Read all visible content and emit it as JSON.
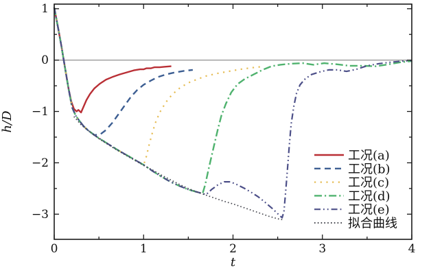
{
  "chart_data": {
    "type": "line",
    "title": "",
    "xlabel": "t",
    "ylabel": "h/D",
    "xlim": [
      0,
      4
    ],
    "ylim": [
      -3.49,
      1.09
    ],
    "grid": false,
    "zero_line": 0,
    "legend_position": "lower right",
    "xticks": {
      "major": [
        {
          "v": 0,
          "label": "0"
        },
        {
          "v": 1,
          "label": "1"
        },
        {
          "v": 2,
          "label": "2"
        },
        {
          "v": 3,
          "label": "3"
        },
        {
          "v": 4,
          "label": "4"
        }
      ],
      "minor": [
        0.5,
        1.5,
        2.5,
        3.5
      ]
    },
    "yticks": {
      "major": [
        {
          "v": 1,
          "label": "1"
        },
        {
          "v": 0,
          "label": "0"
        },
        {
          "v": -1,
          "label": "−1"
        },
        {
          "v": -2,
          "label": "−2"
        },
        {
          "v": -3,
          "label": "−3"
        }
      ],
      "minor": [
        0.5,
        -0.5,
        -1.5,
        -2.5
      ]
    },
    "colors": {
      "frame": "#1a1a1a",
      "zero_line": "#909090",
      "text": "#111111"
    },
    "series": [
      {
        "id": "a",
        "label": "工况(a)",
        "color": "#b92f35",
        "dash": "",
        "width": 2.4,
        "points": [
          [
            0,
            1.02
          ],
          [
            0.04,
            0.66
          ],
          [
            0.08,
            0.28
          ],
          [
            0.12,
            -0.14
          ],
          [
            0.16,
            -0.55
          ],
          [
            0.19,
            -0.8
          ],
          [
            0.22,
            -0.95
          ],
          [
            0.25,
            -1.0
          ],
          [
            0.27,
            -0.97
          ],
          [
            0.3,
            -1.02
          ],
          [
            0.33,
            -0.9
          ],
          [
            0.36,
            -0.78
          ],
          [
            0.4,
            -0.66
          ],
          [
            0.45,
            -0.55
          ],
          [
            0.51,
            -0.46
          ],
          [
            0.58,
            -0.38
          ],
          [
            0.65,
            -0.33
          ],
          [
            0.73,
            -0.28
          ],
          [
            0.81,
            -0.24
          ],
          [
            0.89,
            -0.2
          ],
          [
            0.96,
            -0.18
          ],
          [
            1.0,
            -0.18
          ],
          [
            1.03,
            -0.16
          ],
          [
            1.08,
            -0.16
          ],
          [
            1.12,
            -0.14
          ],
          [
            1.18,
            -0.14
          ],
          [
            1.23,
            -0.13
          ],
          [
            1.31,
            -0.12
          ]
        ]
      },
      {
        "id": "b",
        "label": "工况(b)",
        "color": "#3c5e92",
        "dash": "9 6",
        "width": 2.4,
        "points": [
          [
            0,
            1.02
          ],
          [
            0.04,
            0.66
          ],
          [
            0.08,
            0.28
          ],
          [
            0.12,
            -0.14
          ],
          [
            0.16,
            -0.55
          ],
          [
            0.2,
            -0.92
          ],
          [
            0.24,
            -1.08
          ],
          [
            0.28,
            -1.18
          ],
          [
            0.33,
            -1.29
          ],
          [
            0.38,
            -1.37
          ],
          [
            0.45,
            -1.46
          ],
          [
            0.52,
            -1.44
          ],
          [
            0.58,
            -1.36
          ],
          [
            0.65,
            -1.22
          ],
          [
            0.72,
            -1.05
          ],
          [
            0.79,
            -0.88
          ],
          [
            0.86,
            -0.71
          ],
          [
            0.93,
            -0.58
          ],
          [
            1.0,
            -0.48
          ],
          [
            1.08,
            -0.4
          ],
          [
            1.16,
            -0.33
          ],
          [
            1.25,
            -0.28
          ],
          [
            1.35,
            -0.24
          ],
          [
            1.45,
            -0.21
          ],
          [
            1.55,
            -0.19
          ]
        ]
      },
      {
        "id": "c",
        "label": "工况(c)",
        "color": "#e6bd56",
        "dash": "2.2 6.5",
        "width": 2.2,
        "points": [
          [
            0,
            1.02
          ],
          [
            0.04,
            0.66
          ],
          [
            0.08,
            0.28
          ],
          [
            0.12,
            -0.14
          ],
          [
            0.16,
            -0.55
          ],
          [
            0.2,
            -0.92
          ],
          [
            0.24,
            -1.08
          ],
          [
            0.28,
            -1.18
          ],
          [
            0.33,
            -1.29
          ],
          [
            0.38,
            -1.37
          ],
          [
            0.45,
            -1.46
          ],
          [
            0.5,
            -1.52
          ],
          [
            0.6,
            -1.63
          ],
          [
            0.7,
            -1.74
          ],
          [
            0.8,
            -1.84
          ],
          [
            0.9,
            -1.94
          ],
          [
            1.0,
            -2.04
          ],
          [
            1.03,
            -1.88
          ],
          [
            1.06,
            -1.66
          ],
          [
            1.1,
            -1.4
          ],
          [
            1.14,
            -1.18
          ],
          [
            1.19,
            -0.99
          ],
          [
            1.25,
            -0.82
          ],
          [
            1.32,
            -0.67
          ],
          [
            1.4,
            -0.55
          ],
          [
            1.49,
            -0.45
          ],
          [
            1.59,
            -0.38
          ],
          [
            1.7,
            -0.31
          ],
          [
            1.82,
            -0.26
          ],
          [
            1.95,
            -0.22
          ],
          [
            2.08,
            -0.18
          ],
          [
            2.2,
            -0.15
          ],
          [
            2.31,
            -0.13
          ]
        ]
      },
      {
        "id": "d",
        "label": "工况(d)",
        "color": "#4fb26e",
        "dash": "11 4 2.2 4",
        "width": 2.4,
        "points": [
          [
            0,
            1.02
          ],
          [
            0.04,
            0.66
          ],
          [
            0.08,
            0.28
          ],
          [
            0.12,
            -0.14
          ],
          [
            0.16,
            -0.55
          ],
          [
            0.2,
            -0.92
          ],
          [
            0.24,
            -1.08
          ],
          [
            0.28,
            -1.18
          ],
          [
            0.33,
            -1.29
          ],
          [
            0.38,
            -1.37
          ],
          [
            0.45,
            -1.46
          ],
          [
            0.5,
            -1.52
          ],
          [
            0.6,
            -1.63
          ],
          [
            0.7,
            -1.74
          ],
          [
            0.8,
            -1.84
          ],
          [
            0.9,
            -1.94
          ],
          [
            1.0,
            -2.04
          ],
          [
            1.1,
            -2.16
          ],
          [
            1.2,
            -2.27
          ],
          [
            1.3,
            -2.37
          ],
          [
            1.4,
            -2.45
          ],
          [
            1.5,
            -2.52
          ],
          [
            1.6,
            -2.57
          ],
          [
            1.66,
            -2.6
          ],
          [
            1.69,
            -2.42
          ],
          [
            1.72,
            -2.18
          ],
          [
            1.75,
            -1.95
          ],
          [
            1.79,
            -1.65
          ],
          [
            1.83,
            -1.35
          ],
          [
            1.87,
            -1.08
          ],
          [
            1.92,
            -0.85
          ],
          [
            1.98,
            -0.63
          ],
          [
            2.05,
            -0.47
          ],
          [
            2.13,
            -0.37
          ],
          [
            2.23,
            -0.28
          ],
          [
            2.33,
            -0.19
          ],
          [
            2.43,
            -0.12
          ],
          [
            2.53,
            -0.09
          ],
          [
            2.65,
            -0.07
          ],
          [
            2.78,
            -0.06
          ],
          [
            2.9,
            -0.09
          ],
          [
            3.02,
            -0.06
          ],
          [
            3.15,
            -0.08
          ],
          [
            3.3,
            -0.11
          ],
          [
            3.45,
            -0.11
          ],
          [
            3.6,
            -0.12
          ],
          [
            3.75,
            -0.08
          ],
          [
            3.88,
            -0.04
          ],
          [
            4.0,
            -0.02
          ]
        ]
      },
      {
        "id": "e",
        "label": "工况(e)",
        "color": "#4c4f88",
        "dash": "9 4 1.8 4 1.8 4",
        "width": 2.2,
        "points": [
          [
            0,
            1.02
          ],
          [
            0.04,
            0.66
          ],
          [
            0.08,
            0.28
          ],
          [
            0.12,
            -0.14
          ],
          [
            0.16,
            -0.55
          ],
          [
            0.2,
            -0.92
          ],
          [
            0.24,
            -1.08
          ],
          [
            0.28,
            -1.18
          ],
          [
            0.33,
            -1.29
          ],
          [
            0.38,
            -1.37
          ],
          [
            0.45,
            -1.46
          ],
          [
            0.5,
            -1.52
          ],
          [
            0.6,
            -1.63
          ],
          [
            0.7,
            -1.74
          ],
          [
            0.8,
            -1.84
          ],
          [
            0.9,
            -1.94
          ],
          [
            1.0,
            -2.04
          ],
          [
            1.1,
            -2.16
          ],
          [
            1.2,
            -2.27
          ],
          [
            1.3,
            -2.37
          ],
          [
            1.4,
            -2.45
          ],
          [
            1.5,
            -2.52
          ],
          [
            1.6,
            -2.57
          ],
          [
            1.66,
            -2.6
          ],
          [
            1.7,
            -2.62
          ],
          [
            1.76,
            -2.52
          ],
          [
            1.83,
            -2.43
          ],
          [
            1.9,
            -2.37
          ],
          [
            1.97,
            -2.37
          ],
          [
            2.04,
            -2.42
          ],
          [
            2.12,
            -2.49
          ],
          [
            2.2,
            -2.57
          ],
          [
            2.28,
            -2.66
          ],
          [
            2.36,
            -2.77
          ],
          [
            2.44,
            -2.89
          ],
          [
            2.5,
            -2.99
          ],
          [
            2.55,
            -3.07
          ],
          [
            2.57,
            -2.95
          ],
          [
            2.59,
            -2.55
          ],
          [
            2.61,
            -2.1
          ],
          [
            2.63,
            -1.65
          ],
          [
            2.65,
            -1.25
          ],
          [
            2.68,
            -0.9
          ],
          [
            2.71,
            -0.65
          ],
          [
            2.75,
            -0.48
          ],
          [
            2.81,
            -0.36
          ],
          [
            2.88,
            -0.28
          ],
          [
            2.97,
            -0.23
          ],
          [
            3.07,
            -0.19
          ],
          [
            3.17,
            -0.19
          ],
          [
            3.27,
            -0.22
          ],
          [
            3.38,
            -0.18
          ],
          [
            3.5,
            -0.11
          ],
          [
            3.63,
            -0.07
          ],
          [
            3.77,
            -0.04
          ],
          [
            3.9,
            -0.02
          ],
          [
            4.0,
            -0.01
          ]
        ]
      },
      {
        "id": "fit",
        "label": "拟合曲线",
        "color": "#43444c",
        "dash": "1.6 3.2",
        "width": 1.7,
        "points": [
          [
            0.22,
            -1.1
          ],
          [
            0.3,
            -1.26
          ],
          [
            0.4,
            -1.4
          ],
          [
            0.5,
            -1.53
          ],
          [
            0.6,
            -1.64
          ],
          [
            0.7,
            -1.75
          ],
          [
            0.8,
            -1.85
          ],
          [
            0.9,
            -1.95
          ],
          [
            1.0,
            -2.05
          ],
          [
            1.1,
            -2.14
          ],
          [
            1.2,
            -2.24
          ],
          [
            1.3,
            -2.33
          ],
          [
            1.4,
            -2.42
          ],
          [
            1.5,
            -2.5
          ],
          [
            1.6,
            -2.57
          ],
          [
            1.7,
            -2.63
          ],
          [
            1.8,
            -2.69
          ],
          [
            1.9,
            -2.75
          ],
          [
            2.0,
            -2.8
          ],
          [
            2.1,
            -2.86
          ],
          [
            2.2,
            -2.92
          ],
          [
            2.3,
            -2.98
          ],
          [
            2.4,
            -3.04
          ],
          [
            2.5,
            -3.09
          ],
          [
            2.56,
            -3.11
          ]
        ]
      }
    ]
  }
}
